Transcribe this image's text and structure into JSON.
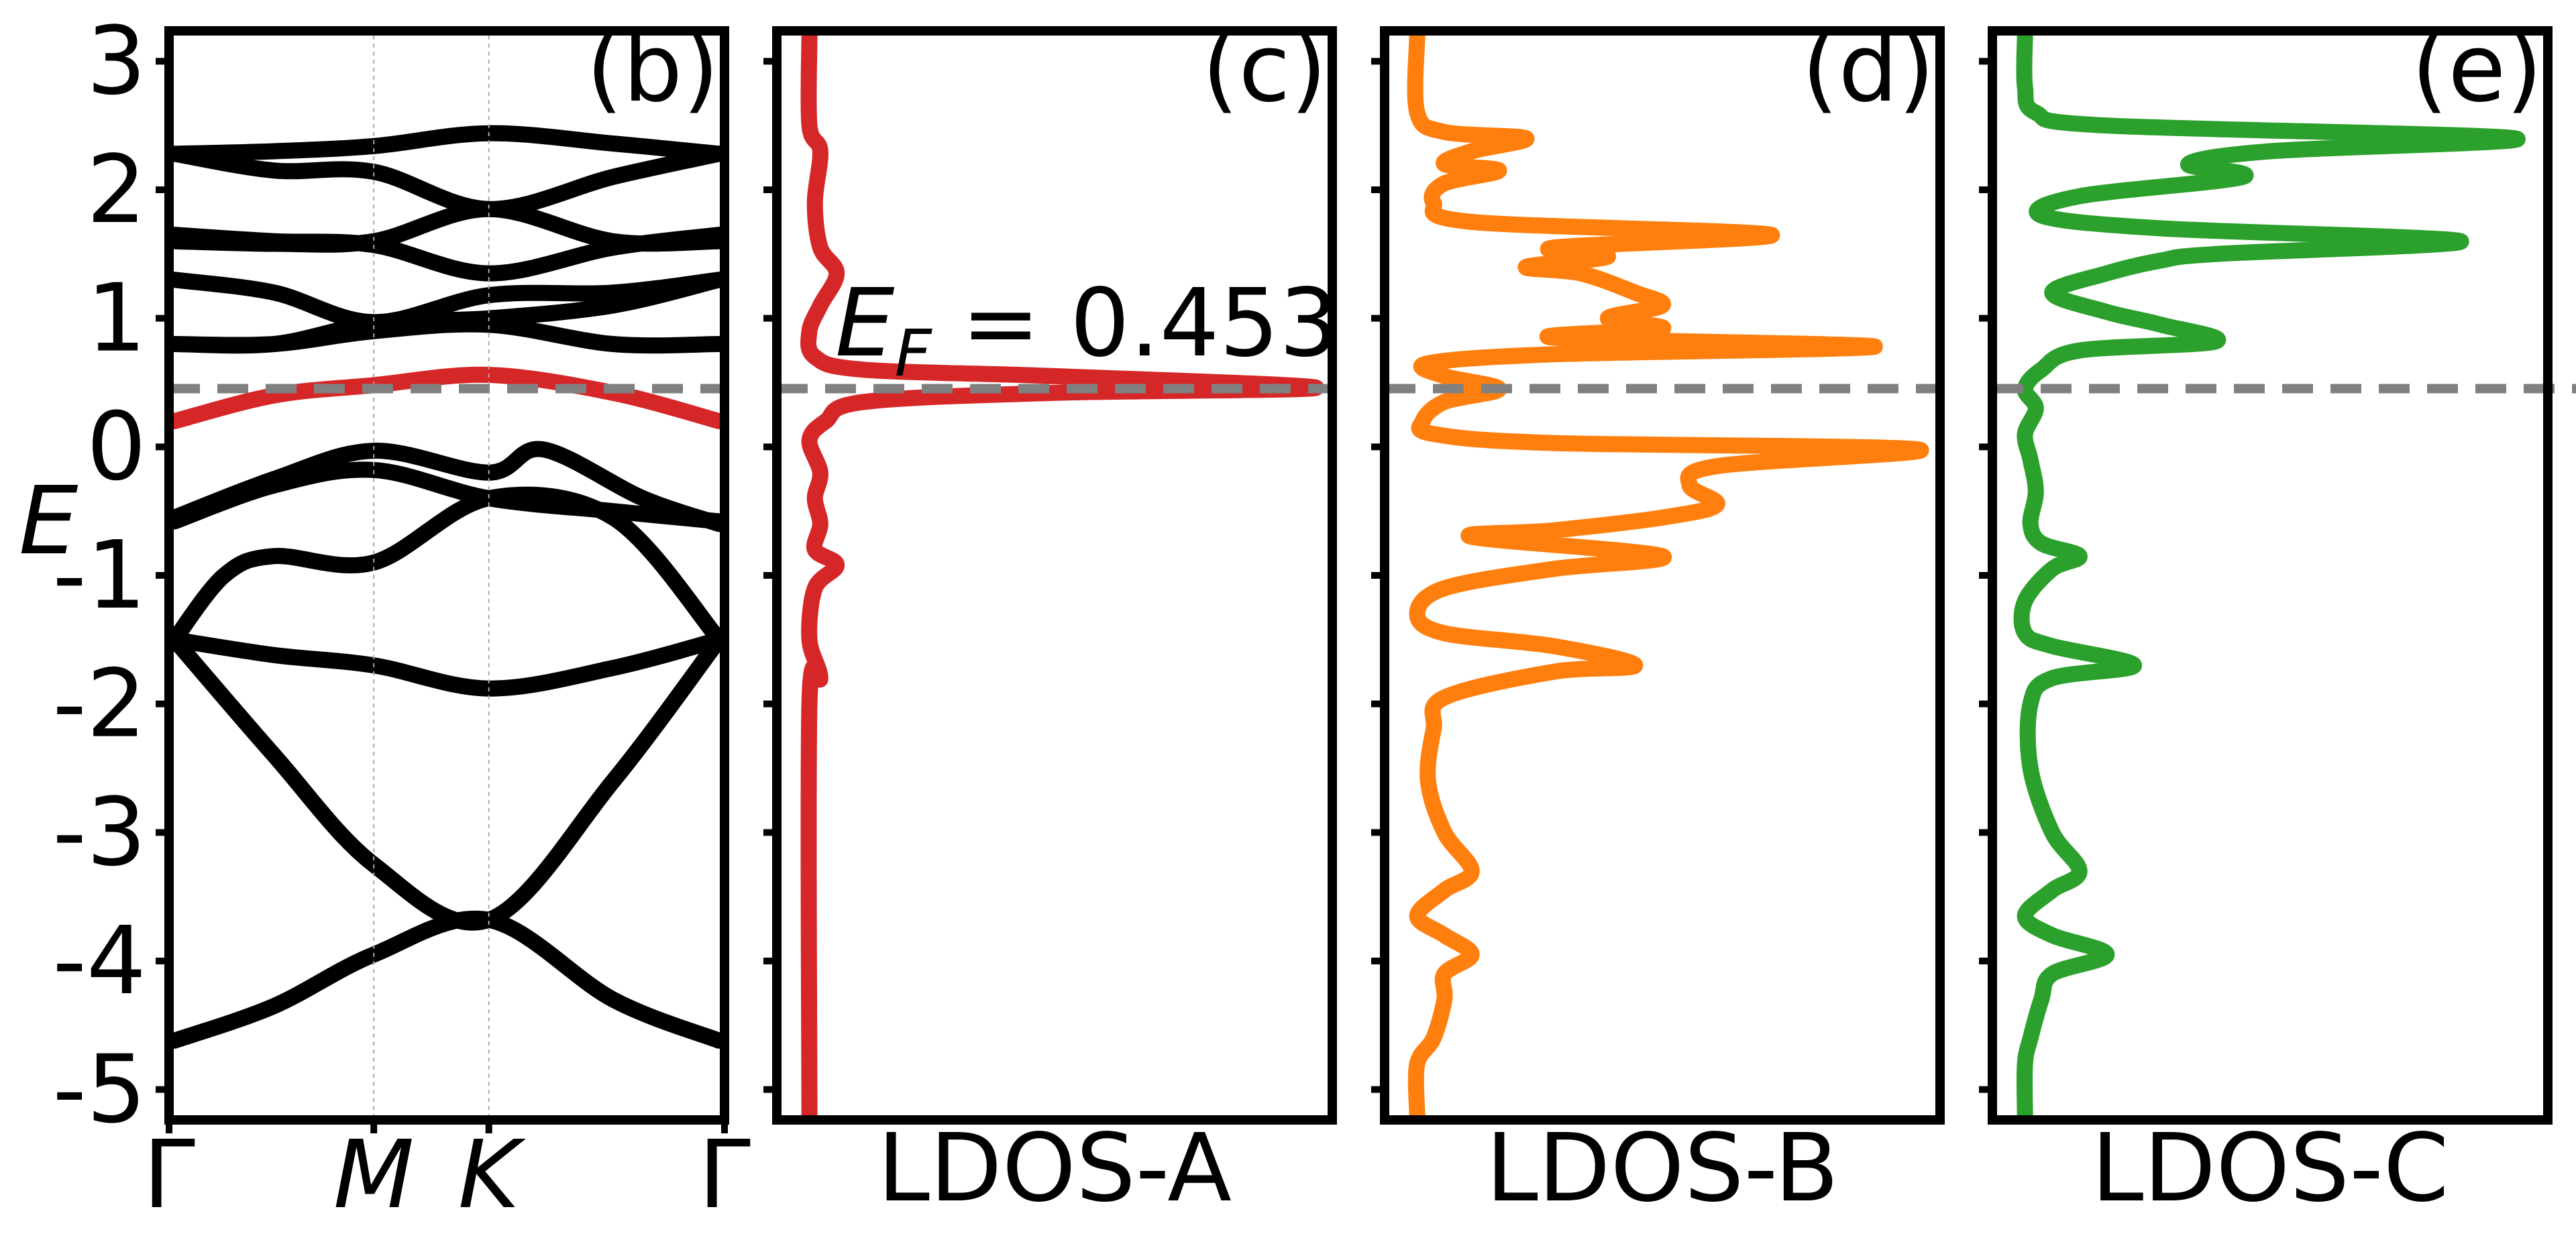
{
  "colors": {
    "axis": "#000000",
    "bands": "#000000",
    "highlight_band": "#d62728",
    "ldos_a": "#d62728",
    "ldos_b": "#ff7f0e",
    "ldos_c": "#2ca02c",
    "fermi_line": "#808080",
    "vline": "#aaaaaa"
  },
  "chart_data": [
    {
      "type": "line",
      "panel_label": "(b)",
      "ylabel": "E",
      "ylim": [
        -5.2,
        3.2
      ],
      "yticks": [
        3,
        2,
        1,
        0,
        -1,
        -2,
        -3,
        -4,
        -5
      ],
      "ytick_labels": [
        "3",
        "2",
        "1",
        "0",
        "-1",
        "-2",
        "-3",
        "-4",
        "-5"
      ],
      "kpath": [
        {
          "label": "Γ",
          "k": 0,
          "italic": false
        },
        {
          "label": "M",
          "k": 1.0,
          "italic": true
        },
        {
          "label": "K",
          "k": 1.577,
          "italic": true
        },
        {
          "label": "Γ",
          "k": 2.732,
          "italic": false
        }
      ],
      "fermi_level": 0.453,
      "series": [
        {
          "values": [
            [
              0,
              -4.62
            ],
            [
              0.5,
              -4.35
            ],
            [
              1.0,
              -3.95
            ],
            [
              1.577,
              -3.68
            ],
            [
              2.2,
              -4.3
            ],
            [
              2.732,
              -4.62
            ]
          ]
        },
        {
          "values": [
            [
              0,
              -1.5
            ],
            [
              0.5,
              -2.4
            ],
            [
              1.0,
              -3.25
            ],
            [
              1.577,
              -3.68
            ],
            [
              2.2,
              -2.6
            ],
            [
              2.732,
              -1.5
            ]
          ]
        },
        {
          "values": [
            [
              0,
              -1.5
            ],
            [
              0.5,
              -1.62
            ],
            [
              1.0,
              -1.7
            ],
            [
              1.577,
              -1.88
            ],
            [
              2.2,
              -1.72
            ],
            [
              2.732,
              -1.5
            ]
          ]
        },
        {
          "values": [
            [
              0,
              -1.5
            ],
            [
              0.25,
              -1.0
            ],
            [
              0.5,
              -0.85
            ],
            [
              1.0,
              -0.9
            ],
            [
              1.577,
              -0.4
            ],
            [
              2.2,
              -0.55
            ],
            [
              2.732,
              -1.5
            ]
          ]
        },
        {
          "values": [
            [
              0,
              -0.58
            ],
            [
              0.5,
              -0.3
            ],
            [
              1.0,
              -0.18
            ],
            [
              1.577,
              -0.4
            ],
            [
              2.2,
              -0.5
            ],
            [
              2.732,
              -0.58
            ]
          ]
        },
        {
          "values": [
            [
              0,
              -0.55
            ],
            [
              0.5,
              -0.25
            ],
            [
              1.0,
              -0.03
            ],
            [
              1.577,
              -0.2
            ],
            [
              1.85,
              -0.02
            ],
            [
              2.35,
              -0.4
            ],
            [
              2.732,
              -0.6
            ]
          ]
        },
        {
          "values": [
            [
              0,
              0.2
            ],
            [
              0.5,
              0.4
            ],
            [
              1.0,
              0.48
            ],
            [
              1.577,
              0.56
            ],
            [
              2.2,
              0.42
            ],
            [
              2.732,
              0.2
            ]
          ],
          "highlight": true
        },
        {
          "values": [
            [
              0,
              0.8
            ],
            [
              0.5,
              0.8
            ],
            [
              1.0,
              0.9
            ],
            [
              1.577,
              0.95
            ],
            [
              2.2,
              0.8
            ],
            [
              2.732,
              0.8
            ]
          ]
        },
        {
          "values": [
            [
              0,
              0.8
            ],
            [
              0.5,
              0.8
            ],
            [
              1.0,
              0.96
            ],
            [
              1.577,
              1.0
            ],
            [
              2.2,
              1.1
            ],
            [
              2.732,
              1.3
            ]
          ]
        },
        {
          "values": [
            [
              0,
              1.3
            ],
            [
              0.5,
              1.2
            ],
            [
              1.0,
              0.97
            ],
            [
              1.577,
              1.18
            ],
            [
              2.2,
              1.2
            ],
            [
              2.732,
              1.3
            ]
          ]
        },
        {
          "values": [
            [
              0,
              1.65
            ],
            [
              0.5,
              1.6
            ],
            [
              1.0,
              1.57
            ],
            [
              1.577,
              1.35
            ],
            [
              2.2,
              1.55
            ],
            [
              2.732,
              1.65
            ]
          ]
        },
        {
          "values": [
            [
              0,
              1.6
            ],
            [
              0.5,
              1.58
            ],
            [
              1.0,
              1.6
            ],
            [
              1.577,
              1.85
            ],
            [
              2.2,
              1.6
            ],
            [
              2.732,
              1.6
            ]
          ]
        },
        {
          "values": [
            [
              0,
              2.28
            ],
            [
              0.5,
              2.15
            ],
            [
              1.0,
              2.14
            ],
            [
              1.577,
              1.85
            ],
            [
              2.2,
              2.1
            ],
            [
              2.732,
              2.28
            ]
          ]
        },
        {
          "values": [
            [
              0,
              2.28
            ],
            [
              0.5,
              2.3
            ],
            [
              1.0,
              2.34
            ],
            [
              1.577,
              2.44
            ],
            [
              2.2,
              2.36
            ],
            [
              2.732,
              2.28
            ]
          ]
        }
      ]
    },
    {
      "type": "line",
      "panel_label": "(c)",
      "xlabel": "LDOS-A",
      "ylim": [
        -5.2,
        3.2
      ],
      "annotation": {
        "symbol": "E",
        "subscript": "F",
        "text": " = 0.453"
      },
      "series": [
        {
          "values": [
            [
              0.05,
              3.2
            ],
            [
              0.05,
              2.5
            ],
            [
              0.07,
              2.3
            ],
            [
              0.06,
              1.9
            ],
            [
              0.07,
              1.55
            ],
            [
              0.1,
              1.35
            ],
            [
              0.07,
              1.1
            ],
            [
              0.05,
              0.9
            ],
            [
              0.06,
              0.7
            ],
            [
              0.15,
              0.6
            ],
            [
              0.5,
              0.55
            ],
            [
              0.98,
              0.46
            ],
            [
              0.5,
              0.42
            ],
            [
              0.15,
              0.35
            ],
            [
              0.08,
              0.2
            ],
            [
              0.05,
              0.05
            ],
            [
              0.07,
              -0.2
            ],
            [
              0.06,
              -0.4
            ],
            [
              0.07,
              -0.6
            ],
            [
              0.06,
              -0.8
            ],
            [
              0.1,
              -0.92
            ],
            [
              0.06,
              -1.1
            ],
            [
              0.05,
              -1.5
            ],
            [
              0.07,
              -1.8
            ],
            [
              0.05,
              -2.0
            ],
            [
              0.05,
              -5.2
            ]
          ]
        }
      ]
    },
    {
      "type": "line",
      "panel_label": "(d)",
      "xlabel": "LDOS-B",
      "ylim": [
        -5.2,
        3.2
      ],
      "series": [
        {
          "values": [
            [
              0.05,
              3.2
            ],
            [
              0.05,
              2.6
            ],
            [
              0.1,
              2.45
            ],
            [
              0.25,
              2.4
            ],
            [
              0.15,
              2.3
            ],
            [
              0.1,
              2.2
            ],
            [
              0.2,
              2.15
            ],
            [
              0.1,
              2.05
            ],
            [
              0.08,
              1.9
            ],
            [
              0.15,
              1.75
            ],
            [
              0.7,
              1.65
            ],
            [
              0.3,
              1.55
            ],
            [
              0.4,
              1.48
            ],
            [
              0.25,
              1.4
            ],
            [
              0.35,
              1.35
            ],
            [
              0.45,
              1.2
            ],
            [
              0.5,
              1.1
            ],
            [
              0.4,
              1.0
            ],
            [
              0.5,
              0.92
            ],
            [
              0.3,
              0.85
            ],
            [
              0.89,
              0.78
            ],
            [
              0.3,
              0.72
            ],
            [
              0.07,
              0.65
            ],
            [
              0.1,
              0.55
            ],
            [
              0.2,
              0.45
            ],
            [
              0.1,
              0.35
            ],
            [
              0.06,
              0.2
            ],
            [
              0.08,
              0.1
            ],
            [
              0.3,
              0.03
            ],
            [
              0.97,
              -0.02
            ],
            [
              0.6,
              -0.15
            ],
            [
              0.55,
              -0.3
            ],
            [
              0.6,
              -0.45
            ],
            [
              0.5,
              -0.55
            ],
            [
              0.3,
              -0.65
            ],
            [
              0.15,
              -0.7
            ],
            [
              0.5,
              -0.85
            ],
            [
              0.3,
              -0.95
            ],
            [
              0.1,
              -1.1
            ],
            [
              0.05,
              -1.3
            ],
            [
              0.1,
              -1.45
            ],
            [
              0.3,
              -1.55
            ],
            [
              0.45,
              -1.7
            ],
            [
              0.3,
              -1.75
            ],
            [
              0.1,
              -1.95
            ],
            [
              0.08,
              -2.2
            ],
            [
              0.07,
              -2.6
            ],
            [
              0.1,
              -3.0
            ],
            [
              0.15,
              -3.3
            ],
            [
              0.1,
              -3.45
            ],
            [
              0.05,
              -3.65
            ],
            [
              0.1,
              -3.8
            ],
            [
              0.15,
              -3.95
            ],
            [
              0.1,
              -4.1
            ],
            [
              0.1,
              -4.3
            ],
            [
              0.08,
              -4.6
            ],
            [
              0.05,
              -4.8
            ],
            [
              0.05,
              -5.2
            ]
          ]
        }
      ]
    },
    {
      "type": "line",
      "panel_label": "(e)",
      "xlabel": "LDOS-C",
      "ylim": [
        -5.2,
        3.2
      ],
      "series": [
        {
          "values": [
            [
              0.05,
              3.2
            ],
            [
              0.05,
              2.8
            ],
            [
              0.07,
              2.6
            ],
            [
              0.2,
              2.5
            ],
            [
              0.95,
              2.4
            ],
            [
              0.5,
              2.3
            ],
            [
              0.35,
              2.2
            ],
            [
              0.45,
              2.1
            ],
            [
              0.15,
              1.95
            ],
            [
              0.08,
              1.8
            ],
            [
              0.3,
              1.7
            ],
            [
              0.85,
              1.6
            ],
            [
              0.4,
              1.5
            ],
            [
              0.3,
              1.45
            ],
            [
              0.2,
              1.35
            ],
            [
              0.1,
              1.2
            ],
            [
              0.2,
              1.05
            ],
            [
              0.3,
              0.95
            ],
            [
              0.4,
              0.82
            ],
            [
              0.15,
              0.75
            ],
            [
              0.08,
              0.6
            ],
            [
              0.05,
              0.45
            ],
            [
              0.07,
              0.3
            ],
            [
              0.05,
              0.1
            ],
            [
              0.06,
              -0.1
            ],
            [
              0.07,
              -0.35
            ],
            [
              0.06,
              -0.6
            ],
            [
              0.08,
              -0.75
            ],
            [
              0.15,
              -0.85
            ],
            [
              0.1,
              -0.95
            ],
            [
              0.05,
              -1.2
            ],
            [
              0.05,
              -1.45
            ],
            [
              0.1,
              -1.55
            ],
            [
              0.25,
              -1.7
            ],
            [
              0.1,
              -1.8
            ],
            [
              0.06,
              -2.0
            ],
            [
              0.06,
              -2.5
            ],
            [
              0.1,
              -3.0
            ],
            [
              0.15,
              -3.3
            ],
            [
              0.1,
              -3.45
            ],
            [
              0.05,
              -3.65
            ],
            [
              0.1,
              -3.8
            ],
            [
              0.2,
              -3.95
            ],
            [
              0.1,
              -4.1
            ],
            [
              0.08,
              -4.3
            ],
            [
              0.06,
              -4.6
            ],
            [
              0.05,
              -4.8
            ],
            [
              0.05,
              -5.2
            ]
          ]
        }
      ]
    }
  ]
}
